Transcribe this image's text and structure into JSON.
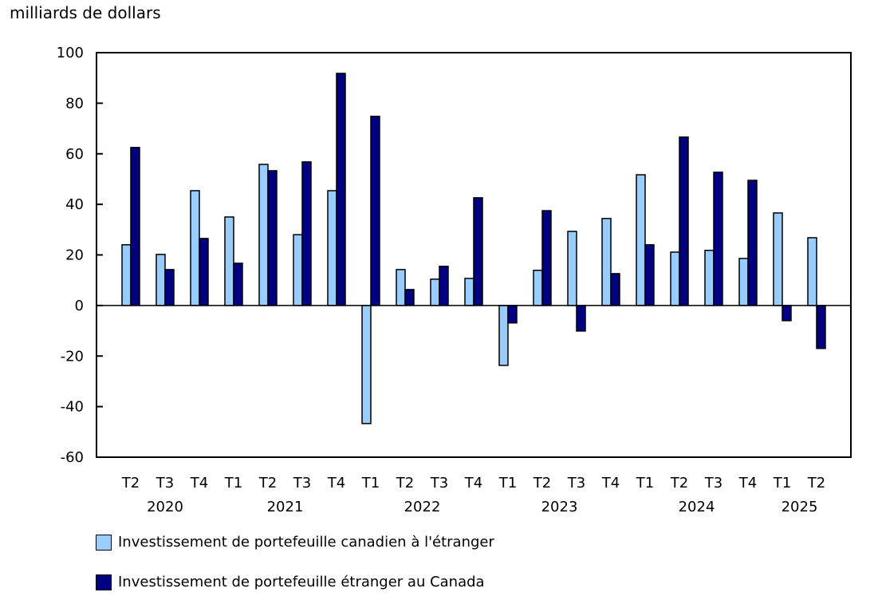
{
  "chart_data": {
    "type": "bar",
    "ylabel": "milliards de dollars",
    "ylim": [
      -60,
      100
    ],
    "yticks": [
      100,
      80,
      60,
      40,
      20,
      0,
      -20,
      -40,
      -60
    ],
    "grid": false,
    "legend_position": "bottom",
    "categories": [
      "T2",
      "T3",
      "T4",
      "T1",
      "T2",
      "T3",
      "T4",
      "T1",
      "T2",
      "T3",
      "T4",
      "T1",
      "T2",
      "T3",
      "T4",
      "T1",
      "T2",
      "T3",
      "T4",
      "T1",
      "T2"
    ],
    "years": [
      {
        "label": "2020",
        "start": 0,
        "end": 2
      },
      {
        "label": "2021",
        "start": 3,
        "end": 6
      },
      {
        "label": "2022",
        "start": 7,
        "end": 10
      },
      {
        "label": "2023",
        "start": 11,
        "end": 14
      },
      {
        "label": "2024",
        "start": 15,
        "end": 18
      },
      {
        "label": "2025",
        "start": 19,
        "end": 20
      }
    ],
    "series": [
      {
        "name": "Investissement de portefeuille canadien à l'étranger",
        "color": "#99ccff",
        "values": [
          24.0,
          20.2,
          45.4,
          35.0,
          55.8,
          28.0,
          45.4,
          -46.7,
          14.2,
          10.4,
          10.7,
          -23.7,
          13.9,
          29.3,
          34.4,
          51.7,
          21.1,
          21.8,
          18.6,
          36.6,
          26.8
        ]
      },
      {
        "name": "Investissement de portefeuille étranger au Canada",
        "color": "#000080",
        "values": [
          62.5,
          14.2,
          26.5,
          16.7,
          53.3,
          56.8,
          91.8,
          74.8,
          6.3,
          15.5,
          42.6,
          -6.9,
          37.5,
          -10.1,
          12.6,
          24.0,
          66.6,
          52.7,
          49.5,
          -6.0,
          -17.0
        ]
      }
    ]
  }
}
